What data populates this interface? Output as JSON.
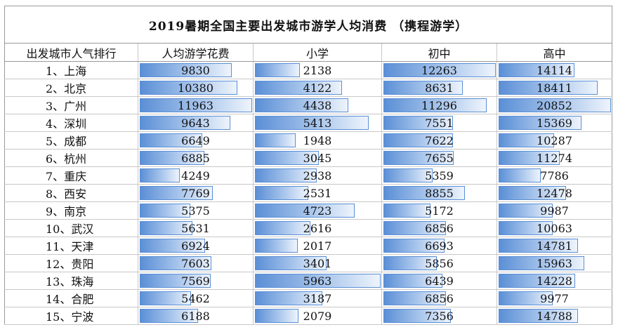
{
  "chart_data": {
    "type": "table",
    "title": "2019暑期全国主要出发城市游学人均消费 （携程游学）",
    "columns": [
      "出发城市人气排行",
      "人均游学花费",
      "小学",
      "初中",
      "高中"
    ],
    "rows": [
      {
        "city": "1、上海",
        "values": [
          9830,
          2138,
          12263,
          14114
        ]
      },
      {
        "city": "2、北京",
        "values": [
          10380,
          4122,
          8631,
          18411
        ]
      },
      {
        "city": "3、广州",
        "values": [
          11963,
          4438,
          11296,
          20852
        ]
      },
      {
        "city": "4、深圳",
        "values": [
          9643,
          5413,
          7551,
          15369
        ]
      },
      {
        "city": "5、成都",
        "values": [
          6649,
          1948,
          7622,
          10287
        ]
      },
      {
        "city": "6、杭州",
        "values": [
          6885,
          3045,
          7655,
          11274
        ]
      },
      {
        "city": "7、重庆",
        "values": [
          4249,
          2938,
          5359,
          7786
        ]
      },
      {
        "city": "8、西安",
        "values": [
          7769,
          2531,
          8855,
          12478
        ]
      },
      {
        "city": "9、南京",
        "values": [
          5375,
          4723,
          5172,
          9987
        ]
      },
      {
        "city": "10、武汉",
        "values": [
          5631,
          2616,
          6856,
          10063
        ]
      },
      {
        "city": "11、天津",
        "values": [
          6924,
          2017,
          6693,
          14781
        ]
      },
      {
        "city": "12、贵阳",
        "values": [
          7603,
          3401,
          5856,
          15963
        ]
      },
      {
        "city": "13、珠海",
        "values": [
          7569,
          5963,
          6439,
          14228
        ]
      },
      {
        "city": "14、合肥",
        "values": [
          5462,
          3187,
          6856,
          9977
        ]
      },
      {
        "city": "15、宁波",
        "values": [
          6188,
          2079,
          7356,
          14788
        ]
      }
    ],
    "bar_color": "#5b8fd6"
  }
}
